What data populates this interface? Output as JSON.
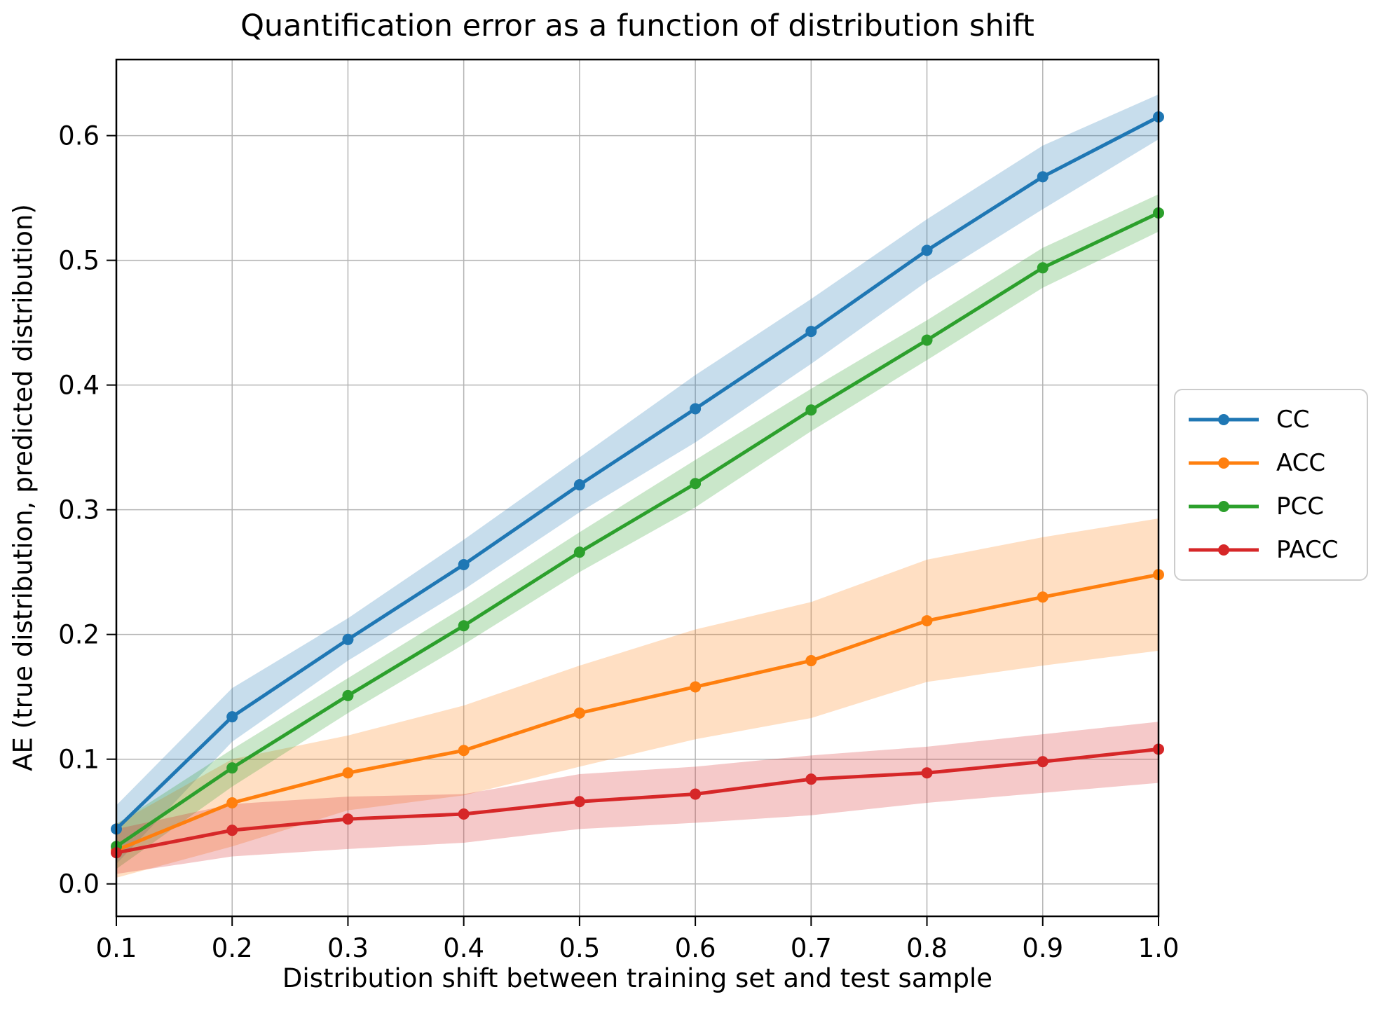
{
  "figure": {
    "title": "Quantification error as a function of distribution shift",
    "xlabel": "Distribution shift between training set and test sample",
    "ylabel": "AE (true distribution, predicted distribution)"
  },
  "chart_data": {
    "type": "line",
    "title": "Quantification error as a function of distribution shift",
    "xlabel": "Distribution shift between training set and test sample",
    "ylabel": "AE (true distribution, predicted distribution)",
    "grid": true,
    "legend_position": "right of axes, vertically centered",
    "marker": "circle",
    "band_opacity": 0.25,
    "grid_color": "#b4b4b4",
    "spine_color": "#000000",
    "xlim": [
      0.1,
      1.0
    ],
    "ylim": [
      -0.026,
      0.661
    ],
    "x": [
      0.1,
      0.2,
      0.3,
      0.4,
      0.5,
      0.6,
      0.7,
      0.8,
      0.9,
      1.0
    ],
    "x_tick_labels": [
      "0.1",
      "0.2",
      "0.3",
      "0.4",
      "0.5",
      "0.6",
      "0.7",
      "0.8",
      "0.9",
      "1.0"
    ],
    "y_ticks": [
      0.0,
      0.1,
      0.2,
      0.3,
      0.4,
      0.5,
      0.6
    ],
    "y_tick_labels": [
      "0.0",
      "0.1",
      "0.2",
      "0.3",
      "0.4",
      "0.5",
      "0.6"
    ],
    "series": [
      {
        "name": "CC",
        "color": "#1f77b4",
        "values": [
          0.044,
          0.134,
          0.196,
          0.256,
          0.32,
          0.381,
          0.443,
          0.508,
          0.567,
          0.615
        ],
        "band_lower": [
          0.016,
          0.114,
          0.179,
          0.236,
          0.298,
          0.354,
          0.417,
          0.483,
          0.541,
          0.597
        ],
        "band_upper": [
          0.063,
          0.157,
          0.213,
          0.276,
          0.342,
          0.408,
          0.469,
          0.533,
          0.592,
          0.633
        ]
      },
      {
        "name": "ACC",
        "color": "#ff7f0e",
        "values": [
          0.027,
          0.065,
          0.089,
          0.107,
          0.137,
          0.158,
          0.179,
          0.211,
          0.23,
          0.248
        ],
        "band_lower": [
          0.005,
          0.03,
          0.059,
          0.071,
          0.094,
          0.116,
          0.133,
          0.162,
          0.175,
          0.187
        ],
        "band_upper": [
          0.048,
          0.1,
          0.119,
          0.143,
          0.175,
          0.204,
          0.226,
          0.26,
          0.278,
          0.293
        ]
      },
      {
        "name": "PCC",
        "color": "#2ca02c",
        "values": [
          0.03,
          0.093,
          0.151,
          0.207,
          0.266,
          0.321,
          0.38,
          0.436,
          0.494,
          0.538
        ],
        "band_lower": [
          0.012,
          0.078,
          0.137,
          0.192,
          0.25,
          0.302,
          0.363,
          0.42,
          0.478,
          0.523
        ],
        "band_upper": [
          0.048,
          0.108,
          0.165,
          0.222,
          0.282,
          0.34,
          0.397,
          0.452,
          0.51,
          0.553
        ]
      },
      {
        "name": "PACC",
        "color": "#d62728",
        "values": [
          0.025,
          0.043,
          0.052,
          0.056,
          0.066,
          0.072,
          0.084,
          0.089,
          0.098,
          0.108
        ],
        "band_lower": [
          0.008,
          0.022,
          0.028,
          0.033,
          0.044,
          0.049,
          0.055,
          0.065,
          0.073,
          0.081
        ],
        "band_upper": [
          0.044,
          0.064,
          0.07,
          0.072,
          0.088,
          0.094,
          0.103,
          0.11,
          0.12,
          0.13
        ]
      }
    ],
    "legend_order": [
      "CC",
      "ACC",
      "PCC",
      "PACC"
    ]
  }
}
